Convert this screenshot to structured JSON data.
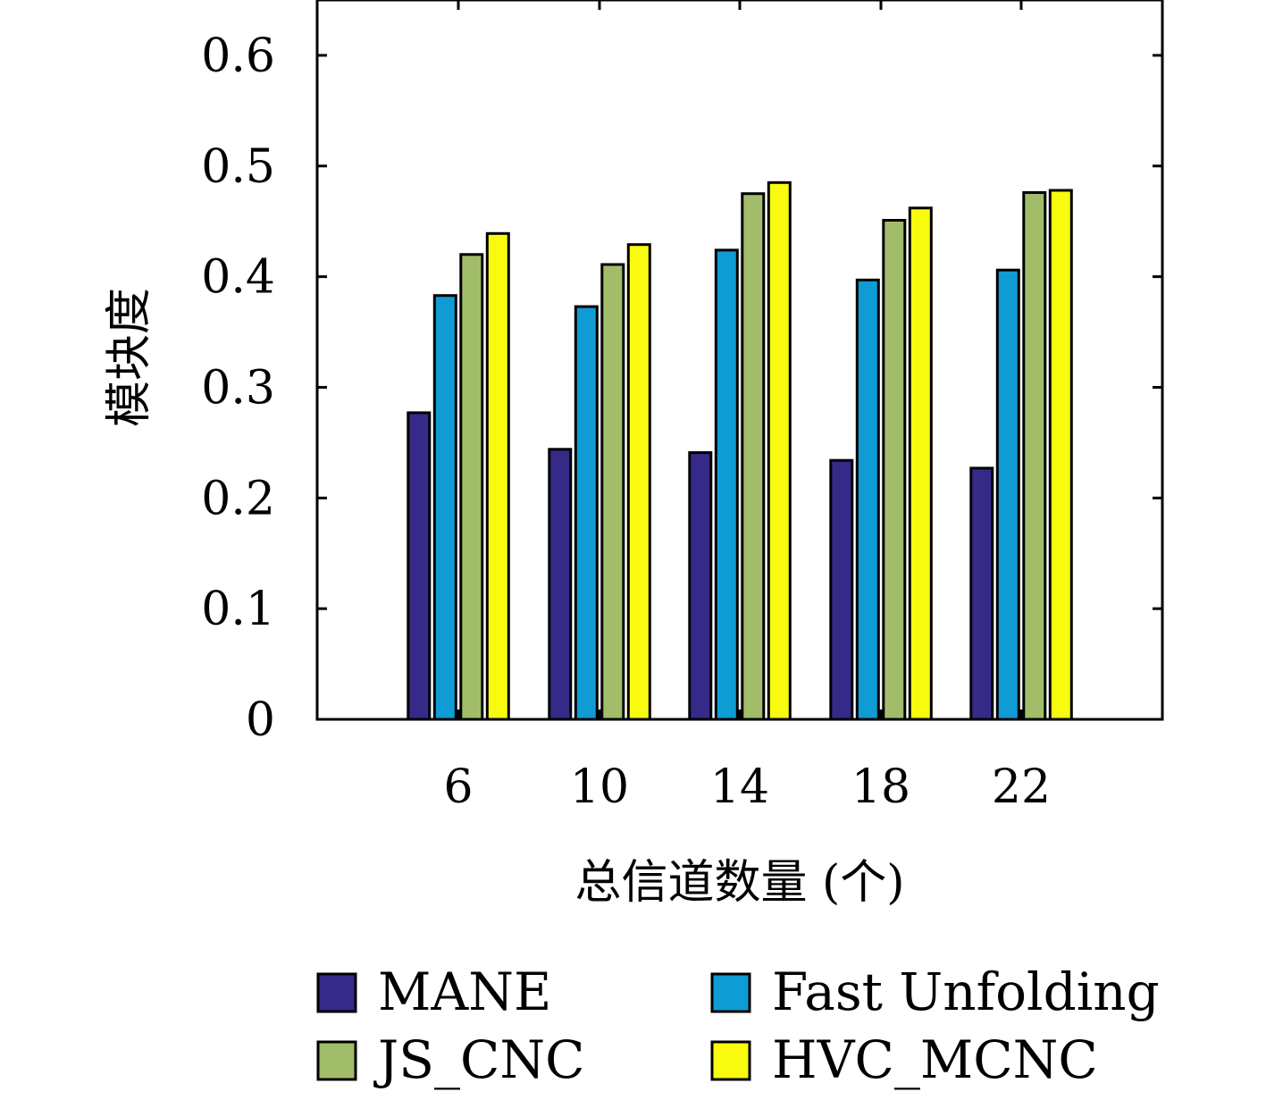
{
  "chart_data": {
    "type": "bar",
    "title": "",
    "xlabel": "总信道数量 (个)",
    "ylabel": "模块度",
    "categories": [
      "6",
      "10",
      "14",
      "18",
      "22"
    ],
    "ylim": [
      0,
      0.65
    ],
    "yticks": [
      "0",
      "0.1",
      "0.2",
      "0.3",
      "0.4",
      "0.5",
      "0.6"
    ],
    "yticks_values": [
      0,
      0.1,
      0.2,
      0.3,
      0.4,
      0.5,
      0.6
    ],
    "grid": false,
    "legend_position": "bottom",
    "series": [
      {
        "name": "MANE",
        "color": "#352a87",
        "values": [
          0.277,
          0.244,
          0.241,
          0.234,
          0.227
        ]
      },
      {
        "name": "Fast Unfolding",
        "color": "#0f9bd4",
        "values": [
          0.383,
          0.373,
          0.424,
          0.397,
          0.406
        ]
      },
      {
        "name": "JS_CNC",
        "color": "#a2bd6a",
        "values": [
          0.42,
          0.411,
          0.475,
          0.451,
          0.476
        ]
      },
      {
        "name": "HVC_MCNC",
        "color": "#f9fb0e",
        "values": [
          0.439,
          0.429,
          0.485,
          0.462,
          0.478
        ]
      }
    ]
  }
}
